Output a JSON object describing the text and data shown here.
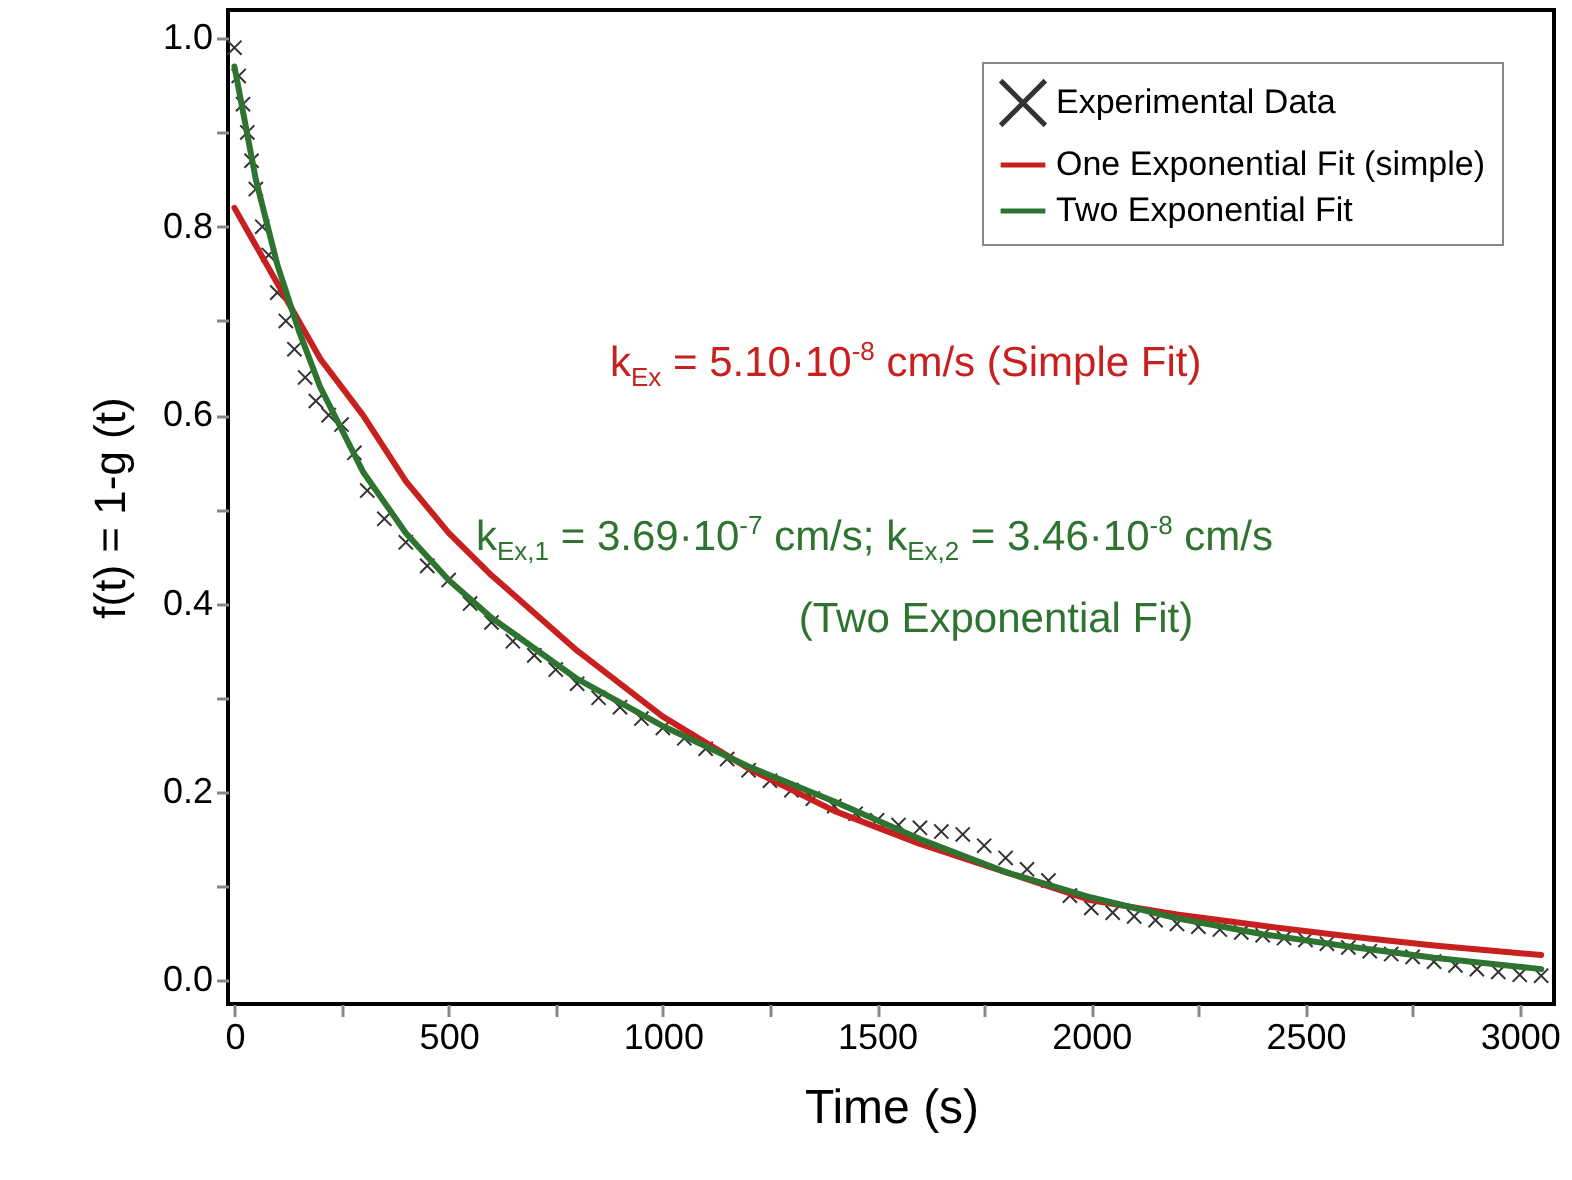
{
  "chart_data": {
    "type": "scatter",
    "xlabel": "Time (s)",
    "ylabel": "f(t) = 1-g (t)",
    "xlim": [
      -15,
      3080
    ],
    "ylim": [
      -0.025,
      1.03
    ],
    "xticks": [
      0,
      {
        "value": 250,
        "label": null
      },
      500,
      {
        "value": 750,
        "label": null
      },
      1000,
      {
        "value": 1250,
        "label": null
      },
      1500,
      {
        "value": 1750,
        "label": null
      },
      2000,
      {
        "value": 2250,
        "label": null
      },
      2500,
      {
        "value": 2750,
        "label": null
      },
      3000
    ],
    "yticks": [
      {
        "value": 0,
        "label": "0.0"
      },
      {
        "value": 0.1,
        "label": null
      },
      0.2,
      {
        "value": 0.3,
        "label": null
      },
      0.4,
      {
        "value": 0.5,
        "label": null
      },
      0.6,
      {
        "value": 0.7,
        "label": null
      },
      0.8,
      {
        "value": 0.9,
        "label": null
      },
      {
        "value": 1,
        "label": "1.0"
      }
    ],
    "grid": false,
    "legend": "top right",
    "annotations": [
      "k$_{Ex}$ = 5.10·10$^{-8}$ cm/s (Simple Fit)",
      "k$_{Ex,1}$ = 3.69·10$^{-7}$ cm/s; k$_{Ex,2}$ = 3.46·10$^{-8}$ cm/s",
      "(Two Exponential Fit)"
    ],
    "series": [
      {
        "name": "Experimental Data",
        "marker": "cross",
        "color": "#333333",
        "x": [
          0,
          10,
          20,
          30,
          40,
          50,
          65,
          80,
          100,
          120,
          140,
          165,
          190,
          220,
          250,
          280,
          310,
          350,
          400,
          450,
          500,
          550,
          600,
          650,
          700,
          750,
          800,
          850,
          900,
          950,
          1000,
          1050,
          1100,
          1150,
          1200,
          1250,
          1300,
          1350,
          1400,
          1450,
          1500,
          1550,
          1600,
          1650,
          1700,
          1750,
          1800,
          1850,
          1900,
          1950,
          2000,
          2050,
          2100,
          2150,
          2200,
          2250,
          2300,
          2350,
          2400,
          2450,
          2500,
          2550,
          2600,
          2650,
          2700,
          2750,
          2800,
          2850,
          2900,
          2950,
          3000,
          3050
        ],
        "values": [
          0.99,
          0.96,
          0.93,
          0.9,
          0.87,
          0.84,
          0.8,
          0.77,
          0.73,
          0.7,
          0.67,
          0.64,
          0.615,
          0.6,
          0.59,
          0.56,
          0.52,
          0.49,
          0.465,
          0.44,
          0.425,
          0.4,
          0.38,
          0.36,
          0.345,
          0.33,
          0.315,
          0.3,
          0.29,
          0.278,
          0.268,
          0.257,
          0.246,
          0.235,
          0.223,
          0.212,
          0.202,
          0.193,
          0.185,
          0.177,
          0.17,
          0.165,
          0.162,
          0.158,
          0.155,
          0.143,
          0.13,
          0.118,
          0.106,
          0.09,
          0.077,
          0.072,
          0.068,
          0.064,
          0.06,
          0.057,
          0.054,
          0.051,
          0.048,
          0.045,
          0.043,
          0.039,
          0.035,
          0.031,
          0.028,
          0.025,
          0.02,
          0.016,
          0.012,
          0.009,
          0.006,
          0.005
        ]
      },
      {
        "name": "One Exponential Fit (simple)",
        "type": "line",
        "color": "#c8201e",
        "x": [
          0,
          100,
          200,
          300,
          400,
          500,
          600,
          800,
          1000,
          1200,
          1400,
          1600,
          1800,
          2000,
          2200,
          2400,
          2600,
          2800,
          3050
        ],
        "values": [
          0.82,
          0.74,
          0.66,
          0.6,
          0.53,
          0.475,
          0.43,
          0.35,
          0.28,
          0.225,
          0.18,
          0.145,
          0.115,
          0.085,
          0.07,
          0.058,
          0.047,
          0.037,
          0.027
        ]
      },
      {
        "name": "Two Exponential Fit",
        "type": "line",
        "color": "#2e7430",
        "x": [
          0,
          50,
          100,
          150,
          200,
          300,
          400,
          500,
          600,
          800,
          1000,
          1200,
          1400,
          1600,
          1800,
          2000,
          2200,
          2400,
          2600,
          2800,
          3050
        ],
        "values": [
          0.97,
          0.85,
          0.76,
          0.69,
          0.63,
          0.54,
          0.475,
          0.425,
          0.385,
          0.32,
          0.27,
          0.227,
          0.19,
          0.15,
          0.115,
          0.088,
          0.066,
          0.049,
          0.036,
          0.024,
          0.012
        ]
      }
    ]
  }
}
